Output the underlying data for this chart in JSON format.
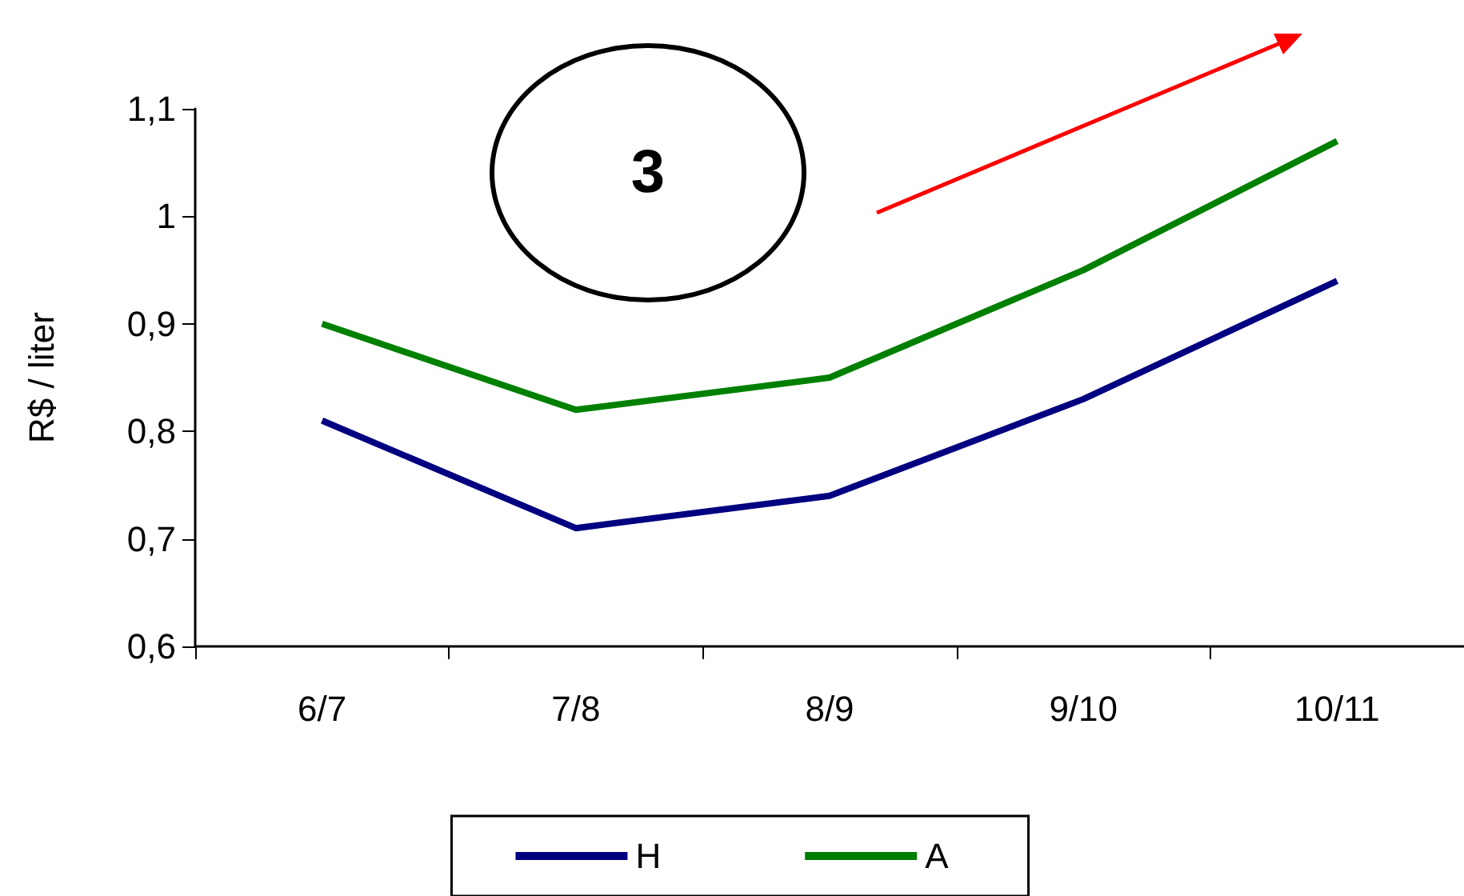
{
  "chart_data": {
    "type": "line",
    "ylabel": "R$ / liter",
    "categories": [
      "6/7",
      "7/8",
      "8/9",
      "9/10",
      "10/11"
    ],
    "series": [
      {
        "name": "H",
        "color": "#000080",
        "values": [
          0.81,
          0.71,
          0.74,
          0.83,
          0.94
        ]
      },
      {
        "name": "A",
        "color": "#008000",
        "values": [
          0.9,
          0.82,
          0.85,
          0.95,
          1.07
        ]
      }
    ],
    "ylim": [
      0.6,
      1.1
    ],
    "yticks": [
      {
        "value": 0.6,
        "label": "0,6"
      },
      {
        "value": 0.7,
        "label": "0,7"
      },
      {
        "value": 0.8,
        "label": "0,8"
      },
      {
        "value": 0.9,
        "label": "0,9"
      },
      {
        "value": 1,
        "label": "1"
      },
      {
        "value": 1.1,
        "label": "1,1"
      }
    ],
    "grid": false,
    "legend": "bottom",
    "marker": "none",
    "line_style": "solid",
    "annotations": [
      "3"
    ]
  }
}
